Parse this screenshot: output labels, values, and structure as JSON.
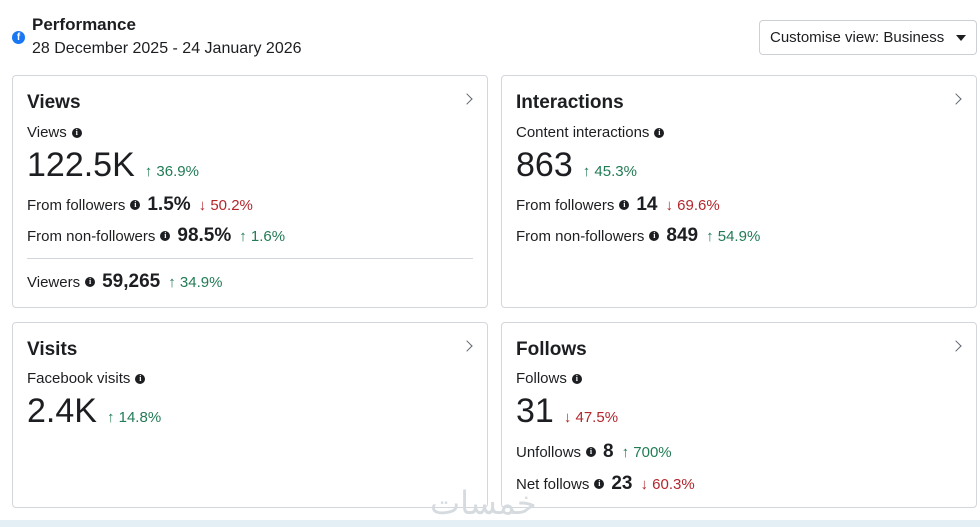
{
  "header": {
    "logo": "f",
    "title": "Performance",
    "date_range": "28 December 2025 - 24 January 2026",
    "customise_label": "Customise view: Business"
  },
  "colors": {
    "up": "#217b55",
    "down": "#b3262c",
    "brand": "#1877f2"
  },
  "views": {
    "title": "Views",
    "metric_label": "Views",
    "value": "122.5K",
    "delta": "↑ 36.9%",
    "from_followers_label": "From followers",
    "from_followers_value": "1.5%",
    "from_followers_delta": "↓ 50.2%",
    "from_non_followers_label": "From non-followers",
    "from_non_followers_value": "98.5%",
    "from_non_followers_delta": "↑ 1.6%",
    "viewers_label": "Viewers",
    "viewers_value": "59,265",
    "viewers_delta": "↑ 34.9%"
  },
  "interactions": {
    "title": "Interactions",
    "metric_label": "Content interactions",
    "value": "863",
    "delta": "↑ 45.3%",
    "from_followers_label": "From followers",
    "from_followers_value": "14",
    "from_followers_delta": "↓ 69.6%",
    "from_non_followers_label": "From non-followers",
    "from_non_followers_value": "849",
    "from_non_followers_delta": "↑ 54.9%"
  },
  "visits": {
    "title": "Visits",
    "metric_label": "Facebook visits",
    "value": "2.4K",
    "delta": "↑ 14.8%"
  },
  "follows": {
    "title": "Follows",
    "metric_label": "Follows",
    "value": "31",
    "delta": "↓ 47.5%",
    "unfollows_label": "Unfollows",
    "unfollows_value": "8",
    "unfollows_delta": "↑ 700%",
    "net_follows_label": "Net follows",
    "net_follows_value": "23",
    "net_follows_delta": "↓ 60.3%"
  },
  "watermark": "خمسات",
  "icons": {
    "info": "i",
    "chevron": "chevron-right-icon",
    "caret": "caret-down-icon"
  }
}
